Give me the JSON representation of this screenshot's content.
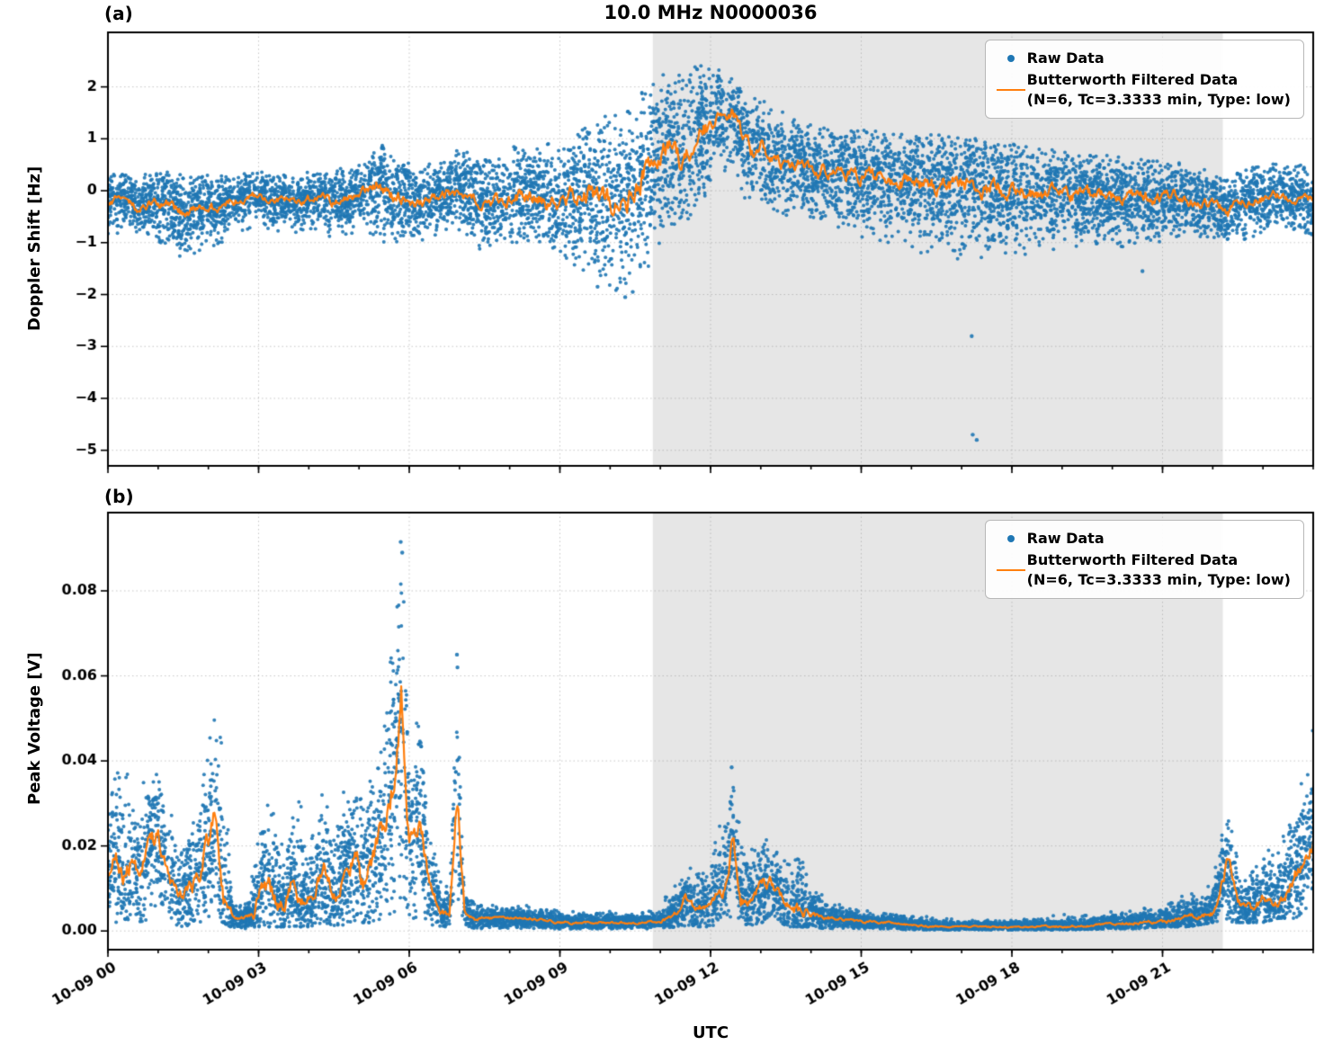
{
  "figure": {
    "title": "10.0 MHz N0000036",
    "xlabel": "UTC",
    "panels": {
      "a": "(a)",
      "b": "(b)"
    },
    "legend": {
      "raw_label": "Raw Data",
      "filtered_label_line1": "Butterworth Filtered Data",
      "filtered_label_line2": "(N=6, Tc=3.3333 min, Type: low)"
    },
    "colors": {
      "raw": "#1f77b4",
      "filtered": "#ff7f0e",
      "shade": "#e6e6e6",
      "grid": "#9a9a9a",
      "frame": "#000000"
    }
  },
  "chart_data": [
    {
      "panel": "a",
      "type": "scatter+line",
      "title": "10.0 MHz N0000036",
      "ylabel": "Doppler Shift [Hz]",
      "ylim": [
        -5.3,
        3.05
      ],
      "yticks": [
        2,
        1,
        0,
        -1,
        -2,
        -3,
        -4,
        -5
      ],
      "ytick_labels": [
        "2",
        "1",
        "0",
        "−1",
        "−2",
        "−3",
        "−4",
        "−5"
      ],
      "x_range_hours": [
        0,
        24
      ],
      "xticks_hours": [
        0,
        3,
        6,
        9,
        12,
        15,
        18,
        21
      ],
      "xtick_labels": [
        "10-09 00",
        "10-09 03",
        "10-09 06",
        "10-09 09",
        "10-09 12",
        "10-09 15",
        "10-09 18",
        "10-09 21"
      ],
      "show_xtick_labels": false,
      "shaded_region_hours": [
        10.85,
        22.2
      ],
      "series": [
        {
          "name": "Raw Data",
          "kind": "scatter",
          "color": "#1f77b4"
        },
        {
          "name": "Butterworth Filtered Data (N=6, Tc=3.3333 min, Type: low)",
          "kind": "line",
          "color": "#ff7f0e"
        }
      ],
      "filtered_line": {
        "x": [
          0,
          0.3,
          0.6,
          0.9,
          1.2,
          1.5,
          1.8,
          2.1,
          2.4,
          2.7,
          3.0,
          3.3,
          3.6,
          3.9,
          4.2,
          4.5,
          4.8,
          5.1,
          5.35,
          5.6,
          5.9,
          6.2,
          6.5,
          6.8,
          7.1,
          7.4,
          7.7,
          8.0,
          8.3,
          8.6,
          8.9,
          9.2,
          9.5,
          9.8,
          10.1,
          10.4,
          10.7,
          11.0,
          11.2,
          11.4,
          11.6,
          11.8,
          12.0,
          12.15,
          12.3,
          12.45,
          12.6,
          12.8,
          13.0,
          13.2,
          13.5,
          13.8,
          14.1,
          14.5,
          15.0,
          15.5,
          16.0,
          16.5,
          17.0,
          17.5,
          18.0,
          18.5,
          19.0,
          19.5,
          20.0,
          20.5,
          21.0,
          21.3,
          21.6,
          22.0,
          22.3,
          22.6,
          23.0,
          23.4,
          23.7,
          24.0
        ],
        "y": [
          -0.25,
          -0.1,
          -0.35,
          -0.2,
          -0.3,
          -0.45,
          -0.3,
          -0.35,
          -0.2,
          -0.15,
          -0.1,
          -0.2,
          -0.15,
          -0.2,
          -0.1,
          -0.25,
          -0.15,
          0.0,
          0.15,
          -0.1,
          -0.2,
          -0.25,
          -0.15,
          -0.05,
          0.0,
          -0.15,
          -0.25,
          -0.15,
          -0.05,
          -0.15,
          -0.25,
          -0.1,
          0.0,
          -0.15,
          -0.2,
          -0.05,
          0.3,
          0.55,
          0.8,
          0.6,
          0.9,
          1.1,
          1.25,
          1.55,
          1.3,
          1.5,
          1.1,
          0.75,
          0.8,
          0.6,
          0.5,
          0.55,
          0.4,
          0.35,
          0.3,
          0.2,
          0.15,
          0.1,
          0.12,
          0.05,
          0.0,
          -0.05,
          -0.08,
          -0.1,
          -0.15,
          -0.1,
          -0.15,
          -0.1,
          -0.2,
          -0.25,
          -0.45,
          -0.2,
          -0.15,
          -0.1,
          -0.15,
          -0.2
        ]
      },
      "raw_envelope": {
        "x": [
          0,
          0.5,
          1.0,
          1.5,
          2.0,
          2.5,
          3.0,
          3.5,
          4.0,
          4.5,
          5.0,
          5.5,
          6.0,
          6.5,
          7.0,
          7.5,
          8.0,
          8.5,
          9.0,
          9.5,
          10.0,
          10.3,
          10.6,
          11.0,
          11.3,
          11.6,
          12.0,
          12.3,
          12.6,
          13.0,
          13.3,
          13.6,
          14.0,
          14.5,
          15.0,
          15.5,
          16.0,
          16.5,
          17.0,
          17.5,
          18.0,
          18.5,
          19.0,
          19.5,
          20.0,
          20.5,
          21.0,
          21.5,
          22.0,
          22.5,
          23.0,
          23.5,
          24.0
        ],
        "lo": [
          -0.9,
          -0.8,
          -1.1,
          -1.3,
          -1.1,
          -0.9,
          -0.7,
          -0.8,
          -0.8,
          -0.9,
          -0.8,
          -1.0,
          -1.0,
          -0.9,
          -0.8,
          -1.2,
          -1.0,
          -1.0,
          -1.2,
          -1.6,
          -1.9,
          -2.1,
          -1.8,
          -1.3,
          -1.0,
          -0.6,
          -0.2,
          0.3,
          -0.1,
          -0.3,
          -0.4,
          -0.5,
          -0.6,
          -0.8,
          -0.9,
          -1.0,
          -1.2,
          -1.3,
          -1.4,
          -1.5,
          -1.3,
          -1.2,
          -1.1,
          -1.1,
          -1.0,
          -1.2,
          -1.0,
          -0.9,
          -0.9,
          -1.0,
          -0.8,
          -0.7,
          -0.9
        ],
        "hi": [
          0.35,
          0.3,
          0.4,
          0.3,
          0.3,
          0.35,
          0.4,
          0.3,
          0.4,
          0.4,
          0.5,
          0.9,
          0.6,
          0.5,
          0.8,
          0.6,
          0.8,
          1.1,
          0.9,
          1.2,
          1.5,
          1.6,
          1.9,
          2.2,
          2.4,
          2.65,
          2.4,
          2.3,
          2.1,
          1.9,
          1.6,
          1.4,
          1.3,
          1.2,
          1.2,
          1.1,
          1.1,
          1.1,
          1.0,
          1.0,
          0.9,
          0.8,
          0.8,
          0.7,
          0.7,
          0.6,
          0.6,
          0.5,
          0.5,
          0.4,
          0.5,
          0.6,
          0.5
        ]
      },
      "outliers": [
        [
          9.75,
          -1.85
        ],
        [
          10.3,
          -2.05
        ],
        [
          10.45,
          -1.95
        ],
        [
          17.2,
          -2.8
        ],
        [
          17.22,
          -4.7
        ],
        [
          17.3,
          -4.8
        ],
        [
          20.6,
          -1.55
        ]
      ],
      "n_raw_points": 8500,
      "seed": 42
    },
    {
      "panel": "b",
      "type": "scatter+line",
      "title": "",
      "ylabel": "Peak Voltage [V]",
      "ylim": [
        -0.0044,
        0.0984
      ],
      "yticks": [
        0.0,
        0.02,
        0.04,
        0.06,
        0.08
      ],
      "ytick_labels": [
        "0.00",
        "0.02",
        "0.04",
        "0.06",
        "0.08"
      ],
      "x_range_hours": [
        0,
        24
      ],
      "xticks_hours": [
        0,
        3,
        6,
        9,
        12,
        15,
        18,
        21
      ],
      "xtick_labels": [
        "10-09 00",
        "10-09 03",
        "10-09 06",
        "10-09 09",
        "10-09 12",
        "10-09 15",
        "10-09 18",
        "10-09 21"
      ],
      "show_xtick_labels": true,
      "shaded_region_hours": [
        10.85,
        22.2
      ],
      "series": [
        {
          "name": "Raw Data",
          "kind": "scatter",
          "color": "#1f77b4"
        },
        {
          "name": "Butterworth Filtered Data (N=6, Tc=3.3333 min, Type: low)",
          "kind": "line",
          "color": "#ff7f0e"
        }
      ],
      "filtered_line": {
        "x": [
          0,
          0.15,
          0.3,
          0.45,
          0.6,
          0.8,
          1.0,
          1.2,
          1.4,
          1.6,
          1.8,
          2.0,
          2.15,
          2.3,
          2.5,
          2.7,
          2.9,
          3.1,
          3.3,
          3.5,
          3.7,
          3.9,
          4.1,
          4.3,
          4.5,
          4.7,
          4.9,
          5.1,
          5.3,
          5.5,
          5.7,
          5.85,
          6.0,
          6.2,
          6.4,
          6.6,
          6.8,
          6.95,
          7.1,
          7.3,
          7.6,
          8.0,
          8.5,
          9.0,
          9.5,
          10.0,
          10.5,
          11.0,
          11.3,
          11.5,
          11.7,
          11.9,
          12.1,
          12.3,
          12.45,
          12.6,
          12.8,
          13.0,
          13.2,
          13.4,
          13.6,
          13.8,
          14.0,
          14.3,
          14.6,
          15.0,
          15.5,
          16.0,
          16.5,
          17.0,
          17.5,
          18.0,
          18.5,
          19.0,
          19.5,
          20.0,
          20.5,
          21.0,
          21.5,
          22.0,
          22.3,
          22.5,
          22.8,
          23.0,
          23.3,
          23.5,
          23.7,
          23.85,
          24.0
        ],
        "y": [
          0.013,
          0.02,
          0.012,
          0.016,
          0.013,
          0.019,
          0.022,
          0.012,
          0.008,
          0.01,
          0.013,
          0.021,
          0.027,
          0.008,
          0.003,
          0.003,
          0.004,
          0.012,
          0.008,
          0.005,
          0.012,
          0.006,
          0.008,
          0.015,
          0.008,
          0.012,
          0.018,
          0.012,
          0.019,
          0.024,
          0.038,
          0.054,
          0.02,
          0.027,
          0.01,
          0.005,
          0.004,
          0.034,
          0.005,
          0.003,
          0.003,
          0.003,
          0.003,
          0.002,
          0.002,
          0.002,
          0.002,
          0.002,
          0.004,
          0.008,
          0.005,
          0.006,
          0.008,
          0.011,
          0.022,
          0.008,
          0.007,
          0.01,
          0.012,
          0.008,
          0.006,
          0.005,
          0.004,
          0.003,
          0.003,
          0.002,
          0.002,
          0.0015,
          0.001,
          0.001,
          0.001,
          0.001,
          0.001,
          0.001,
          0.0012,
          0.0015,
          0.002,
          0.002,
          0.003,
          0.004,
          0.017,
          0.006,
          0.005,
          0.008,
          0.006,
          0.01,
          0.014,
          0.019,
          0.021
        ]
      },
      "raw_envelope": {
        "x": [
          0,
          0.3,
          0.6,
          0.9,
          1.2,
          1.5,
          1.8,
          2.1,
          2.3,
          2.5,
          2.8,
          3.0,
          3.2,
          3.5,
          3.8,
          4.0,
          4.3,
          4.6,
          4.9,
          5.2,
          5.5,
          5.7,
          5.85,
          6.0,
          6.2,
          6.5,
          6.8,
          6.95,
          7.1,
          7.4,
          8.0,
          8.5,
          9.0,
          9.5,
          10.0,
          10.5,
          11.0,
          11.3,
          11.6,
          12.0,
          12.3,
          12.45,
          12.7,
          13.0,
          13.2,
          13.5,
          13.8,
          14.0,
          14.3,
          14.6,
          15.0,
          16.0,
          17.0,
          18.0,
          19.0,
          20.0,
          20.5,
          21.0,
          21.5,
          22.0,
          22.3,
          22.6,
          23.0,
          23.3,
          23.6,
          23.85,
          24.0
        ],
        "lo": [
          0.001,
          0.002,
          0.002,
          0.003,
          0.002,
          0.001,
          0.002,
          0.003,
          0.002,
          0.0005,
          0.0005,
          0.001,
          0.001,
          0.001,
          0.001,
          0.001,
          0.002,
          0.001,
          0.002,
          0.002,
          0.003,
          0.004,
          0.004,
          0.003,
          0.003,
          0.001,
          0.001,
          0.002,
          0.001,
          0.0005,
          0.0005,
          0.0005,
          0.0005,
          0.0005,
          0.0005,
          0.0005,
          0.0005,
          0.001,
          0.001,
          0.001,
          0.002,
          0.003,
          0.001,
          0.002,
          0.002,
          0.001,
          0.001,
          0.001,
          0.0005,
          0.0005,
          0.0005,
          0.0003,
          0.0003,
          0.0003,
          0.0003,
          0.0005,
          0.0005,
          0.001,
          0.001,
          0.002,
          0.002,
          0.002,
          0.002,
          0.003,
          0.003,
          0.004,
          0.005
        ],
        "hi": [
          0.03,
          0.044,
          0.036,
          0.04,
          0.03,
          0.028,
          0.035,
          0.052,
          0.048,
          0.006,
          0.008,
          0.03,
          0.042,
          0.026,
          0.035,
          0.025,
          0.035,
          0.03,
          0.042,
          0.045,
          0.05,
          0.075,
          0.092,
          0.05,
          0.052,
          0.02,
          0.012,
          0.065,
          0.01,
          0.006,
          0.006,
          0.006,
          0.005,
          0.005,
          0.005,
          0.004,
          0.006,
          0.012,
          0.015,
          0.018,
          0.03,
          0.038,
          0.02,
          0.025,
          0.022,
          0.018,
          0.028,
          0.012,
          0.008,
          0.006,
          0.005,
          0.004,
          0.003,
          0.003,
          0.004,
          0.005,
          0.006,
          0.008,
          0.01,
          0.014,
          0.028,
          0.016,
          0.02,
          0.024,
          0.03,
          0.04,
          0.048
        ]
      },
      "outliers": [
        [
          5.83,
          0.0915
        ],
        [
          5.86,
          0.089
        ],
        [
          6.95,
          0.065
        ],
        [
          6.96,
          0.062
        ],
        [
          12.42,
          0.0385
        ]
      ],
      "n_raw_points": 8500,
      "seed": 7
    }
  ]
}
